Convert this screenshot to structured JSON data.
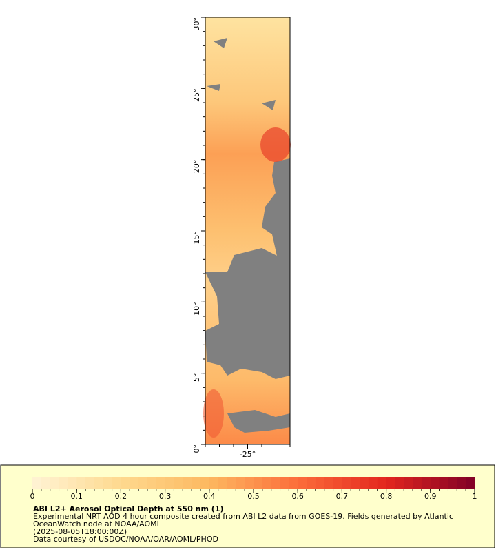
{
  "map": {
    "xlim": [
      -28,
      -22
    ],
    "ylim": [
      0,
      30
    ],
    "xticks": [
      {
        "value": -25,
        "label": "-25°"
      }
    ],
    "yticks": [
      {
        "value": 0,
        "label": "0°"
      },
      {
        "value": 5,
        "label": "5°"
      },
      {
        "value": 10,
        "label": "10°"
      },
      {
        "value": 15,
        "label": "15°"
      },
      {
        "value": 20,
        "label": "20°"
      },
      {
        "value": 25,
        "label": "25°"
      },
      {
        "value": 30,
        "label": "30°"
      }
    ],
    "colorbar": {
      "range": [
        0,
        1
      ],
      "ticks": [
        0,
        0.1,
        0.2,
        0.3,
        0.4,
        0.5,
        0.6,
        0.7,
        0.8,
        0.9,
        1
      ],
      "colors": [
        "#fff3d4",
        "#fed98e",
        "#fdb860",
        "#fc6d3a",
        "#e3261e",
        "#800026"
      ]
    },
    "title": "ABI L2+ Aerosol Optical Depth at 550 nm (1)",
    "description": [
      "Experimental NRT AOD 4 hour composite created from ABI L2 data from GOES-19. Fields generated by Atlantic",
      "OceanWatch node at NOAA/AOML",
      "(2025-08-05T18:00:00Z)",
      "Data courtesy of USDOC/NOAA/OAR/AOML/PHOD"
    ]
  }
}
